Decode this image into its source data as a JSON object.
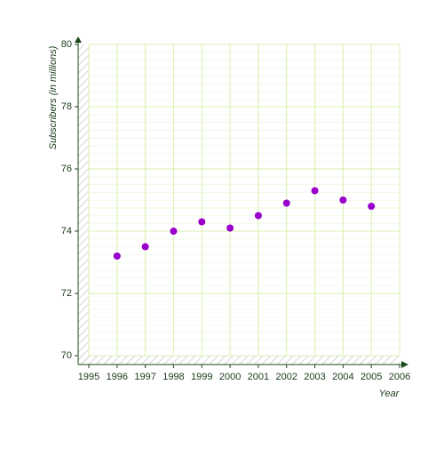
{
  "chart_data": {
    "type": "scatter",
    "x_label": "Year",
    "y_label": "Subscribers (in millions)",
    "series": [
      {
        "name": "Subscribers",
        "color": "#9900cc",
        "x": [
          1996,
          1997,
          1998,
          1999,
          2000,
          2001,
          2002,
          2003,
          2004,
          2005
        ],
        "values": [
          73.2,
          73.5,
          74.0,
          74.3,
          74.1,
          74.5,
          74.9,
          75.3,
          75.0,
          74.8
        ]
      }
    ],
    "xlim": [
      1995,
      2006
    ],
    "xticks": [
      1995,
      1996,
      1997,
      1998,
      1999,
      2000,
      2001,
      2002,
      2003,
      2004,
      2005,
      2006
    ],
    "ylim": [
      70,
      80
    ],
    "yticks": [
      70,
      72,
      74,
      76,
      78,
      80
    ],
    "grid": true
  }
}
